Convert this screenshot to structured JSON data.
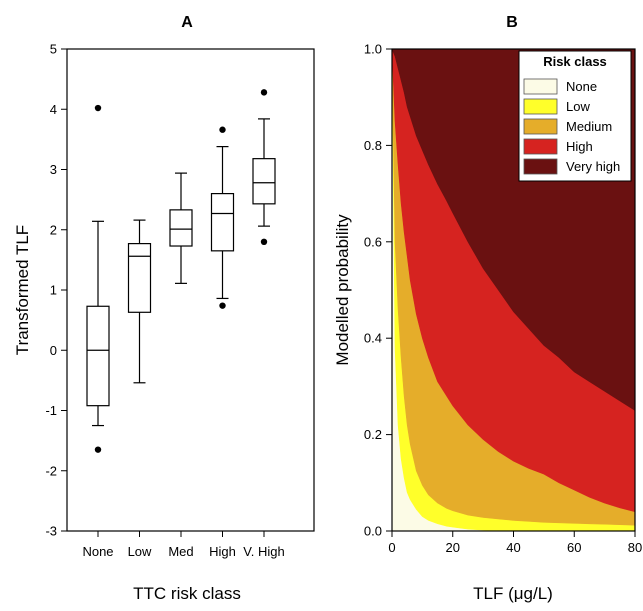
{
  "chart_data": [
    {
      "type": "box",
      "panel_label": "A",
      "xlabel": "TTC risk class",
      "ylabel": "Transformed TLF",
      "ylim": [
        -3,
        5
      ],
      "yticks": [
        -3,
        -2,
        -1,
        0,
        1,
        2,
        3,
        4,
        5
      ],
      "categories": [
        "None",
        "Low",
        "Med",
        "High",
        "V. High"
      ],
      "boxes": [
        {
          "whisker_low": -1.25,
          "q1": -0.92,
          "median": 0.0,
          "q3": 0.73,
          "whisker_high": 2.14,
          "outliers": [
            -1.65,
            4.02
          ]
        },
        {
          "whisker_low": -0.54,
          "q1": 0.63,
          "median": 1.56,
          "q3": 1.77,
          "whisker_high": 2.16,
          "outliers": []
        },
        {
          "whisker_low": 1.11,
          "q1": 1.73,
          "median": 2.01,
          "q3": 2.33,
          "whisker_high": 2.94,
          "outliers": []
        },
        {
          "whisker_low": 0.86,
          "q1": 1.65,
          "median": 2.27,
          "q3": 2.6,
          "whisker_high": 3.38,
          "outliers": [
            0.74,
            3.66
          ]
        },
        {
          "whisker_low": 2.06,
          "q1": 2.43,
          "median": 2.78,
          "q3": 3.18,
          "whisker_high": 3.84,
          "outliers": [
            1.8,
            4.28
          ]
        }
      ]
    },
    {
      "type": "area",
      "panel_label": "B",
      "xlabel": "TLF (μg/L)",
      "ylabel": "Modelled probability",
      "xlim": [
        0,
        80
      ],
      "ylim": [
        0,
        1
      ],
      "xticks": [
        0,
        20,
        40,
        60,
        80
      ],
      "yticks": [
        "0.0",
        "0.2",
        "0.4",
        "0.6",
        "0.8",
        "1.0"
      ],
      "legend_title": "Risk class",
      "legend_position": "top-right",
      "classes": [
        {
          "name": "None",
          "color": "#fcfbe6"
        },
        {
          "name": "Low",
          "color": "#ffff2a"
        },
        {
          "name": "Medium",
          "color": "#e5ad2a"
        },
        {
          "name": "High",
          "color": "#d62320"
        },
        {
          "name": "Very high",
          "color": "#6a1111"
        }
      ],
      "boundaries": {
        "x": [
          0,
          1,
          2,
          3,
          4,
          5,
          6,
          8,
          10,
          12,
          15,
          18,
          20,
          25,
          30,
          35,
          40,
          45,
          50,
          55,
          60,
          65,
          70,
          75,
          80
        ],
        "none_low": [
          1.0,
          0.38,
          0.22,
          0.15,
          0.11,
          0.08,
          0.065,
          0.045,
          0.03,
          0.022,
          0.015,
          0.01,
          0.008,
          0.004,
          0.002,
          0.001,
          0.0,
          0.0,
          0.0,
          0.0,
          0.0,
          0.0,
          0.0,
          0.0,
          0.0
        ],
        "low_medium": [
          1.0,
          0.6,
          0.46,
          0.36,
          0.28,
          0.22,
          0.18,
          0.125,
          0.095,
          0.075,
          0.058,
          0.047,
          0.042,
          0.033,
          0.028,
          0.025,
          0.022,
          0.02,
          0.018,
          0.017,
          0.016,
          0.015,
          0.014,
          0.013,
          0.012
        ],
        "medium_high": [
          1.0,
          0.85,
          0.76,
          0.68,
          0.62,
          0.57,
          0.52,
          0.45,
          0.4,
          0.36,
          0.31,
          0.28,
          0.26,
          0.22,
          0.19,
          0.165,
          0.145,
          0.13,
          0.118,
          0.1,
          0.085,
          0.07,
          0.058,
          0.048,
          0.04
        ],
        "high_veryhigh": [
          1.0,
          0.985,
          0.96,
          0.935,
          0.91,
          0.88,
          0.86,
          0.82,
          0.79,
          0.76,
          0.72,
          0.685,
          0.66,
          0.6,
          0.545,
          0.5,
          0.455,
          0.42,
          0.385,
          0.36,
          0.33,
          0.31,
          0.29,
          0.27,
          0.25
        ]
      }
    }
  ]
}
